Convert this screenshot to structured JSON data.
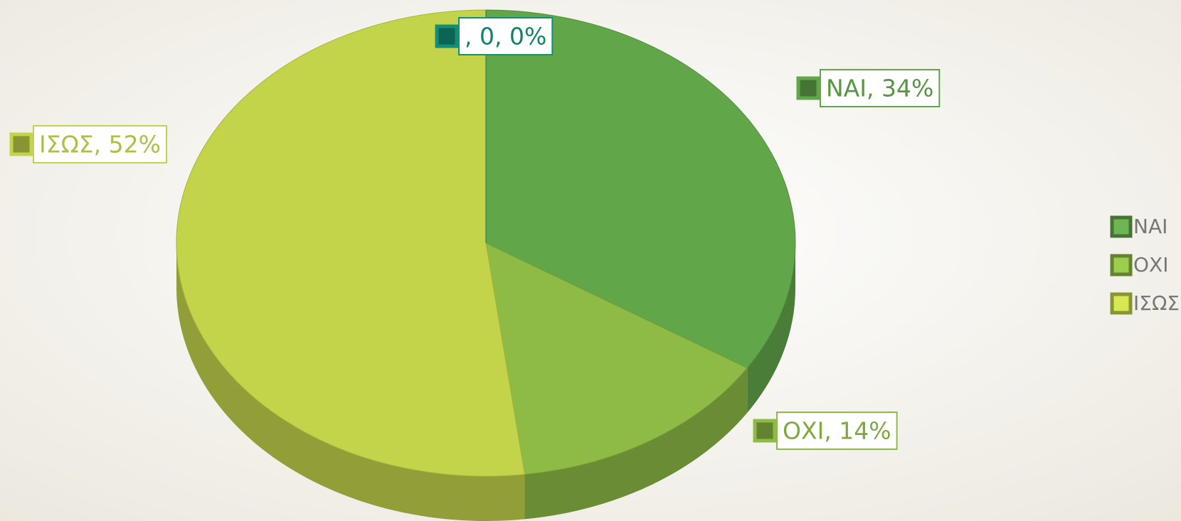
{
  "chart_data": {
    "type": "pie",
    "categories": [
      "ΝΑΙ",
      "ΟΧΙ",
      "ΙΣΩΣ",
      null
    ],
    "values": [
      34,
      14,
      52,
      0
    ],
    "value_labels": [
      "ΝΑΙ, 34%",
      "ΟΧΙ, 14%",
      "ΙΣΩΣ, 52%",
      ", 0, 0%"
    ],
    "colors": [
      "#62a64a",
      "#8dbb45",
      "#c3d44a",
      "#148f77"
    ],
    "legend": "right"
  }
}
